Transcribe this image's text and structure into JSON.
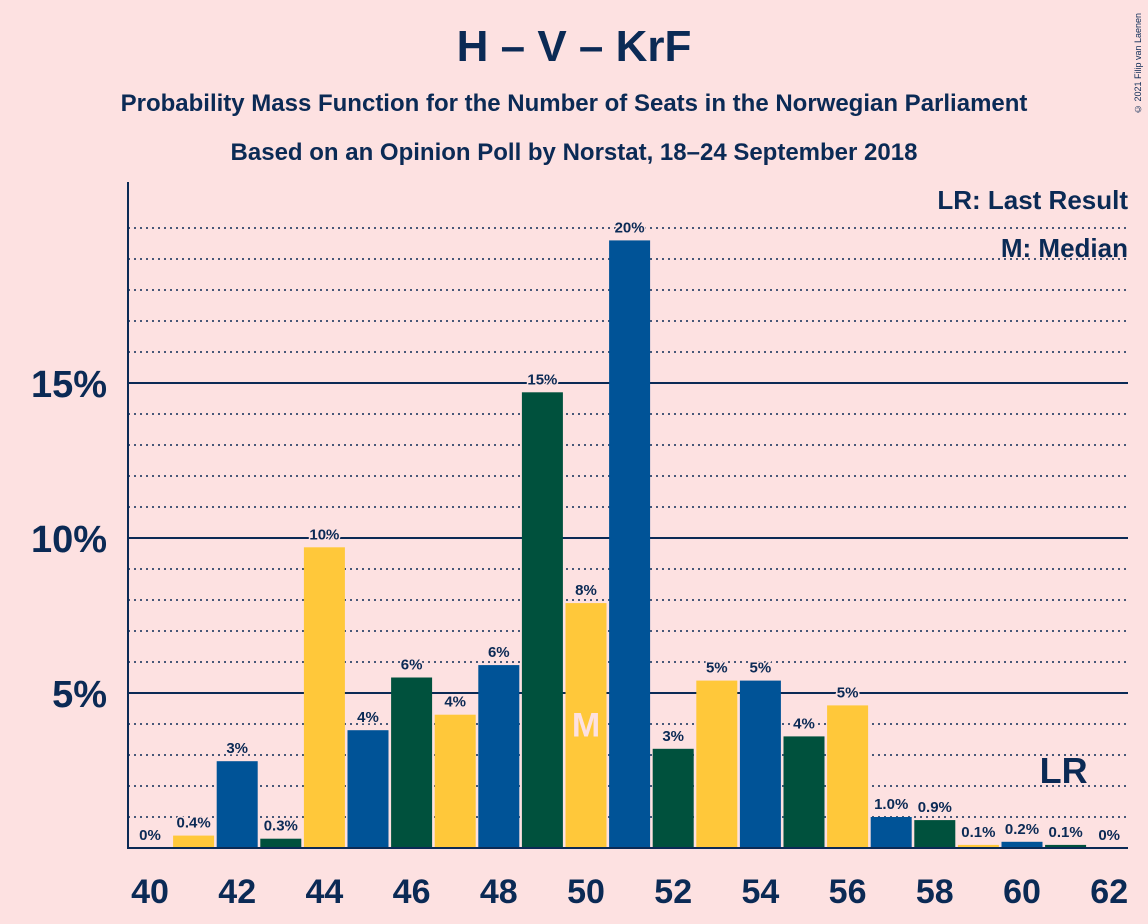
{
  "title": "H – V – KrF",
  "subtitle1": "Probability Mass Function for the Number of Seats in the Norwegian Parliament",
  "subtitle2": "Based on an Opinion Poll by Norstat, 18–24 September 2018",
  "copyright": "© 2021 Filip van Laenen",
  "legend": {
    "lr": "LR: Last Result",
    "m": "M: Median"
  },
  "colors": {
    "background": "#fde1e1",
    "blue": "#005397",
    "green": "#00513d",
    "yellow": "#ffc83a",
    "axis": "#0b2a55"
  },
  "chart_data": {
    "type": "bar",
    "x": [
      40,
      41,
      42,
      43,
      44,
      45,
      46,
      47,
      48,
      49,
      50,
      51,
      52,
      53,
      54,
      55,
      56,
      57,
      58,
      59,
      60,
      61,
      62
    ],
    "values": [
      0,
      0.4,
      2.8,
      0.3,
      9.7,
      3.8,
      5.5,
      4.3,
      5.9,
      14.7,
      7.9,
      19.6,
      3.2,
      5.4,
      5.4,
      3.6,
      4.6,
      1.0,
      0.9,
      0.1,
      0.2,
      0.1,
      0
    ],
    "labels": [
      "0%",
      "0.4%",
      "3%",
      "0.3%",
      "10%",
      "4%",
      "6%",
      "4%",
      "6%",
      "15%",
      "8%",
      "20%",
      "3%",
      "5%",
      "5%",
      "4%",
      "5%",
      "1.0%",
      "0.9%",
      "0.1%",
      "0.2%",
      "0.1%",
      "0%"
    ],
    "colors": [
      "blue",
      "yellow",
      "blue",
      "green",
      "yellow",
      "blue",
      "green",
      "yellow",
      "blue",
      "green",
      "yellow",
      "blue",
      "green",
      "yellow",
      "blue",
      "green",
      "yellow",
      "blue",
      "green",
      "yellow",
      "blue",
      "green",
      "yellow"
    ],
    "x_tick_labels": [
      "40",
      "42",
      "44",
      "46",
      "48",
      "50",
      "52",
      "54",
      "56",
      "58",
      "60",
      "62"
    ],
    "y_tick_labels": [
      "5%",
      "10%",
      "15%"
    ],
    "y_ticks": [
      5,
      10,
      15
    ],
    "ylim": [
      0,
      21
    ],
    "median": 50,
    "median_label": "M",
    "last_result": 61,
    "last_result_label": "LR",
    "grid": true
  }
}
